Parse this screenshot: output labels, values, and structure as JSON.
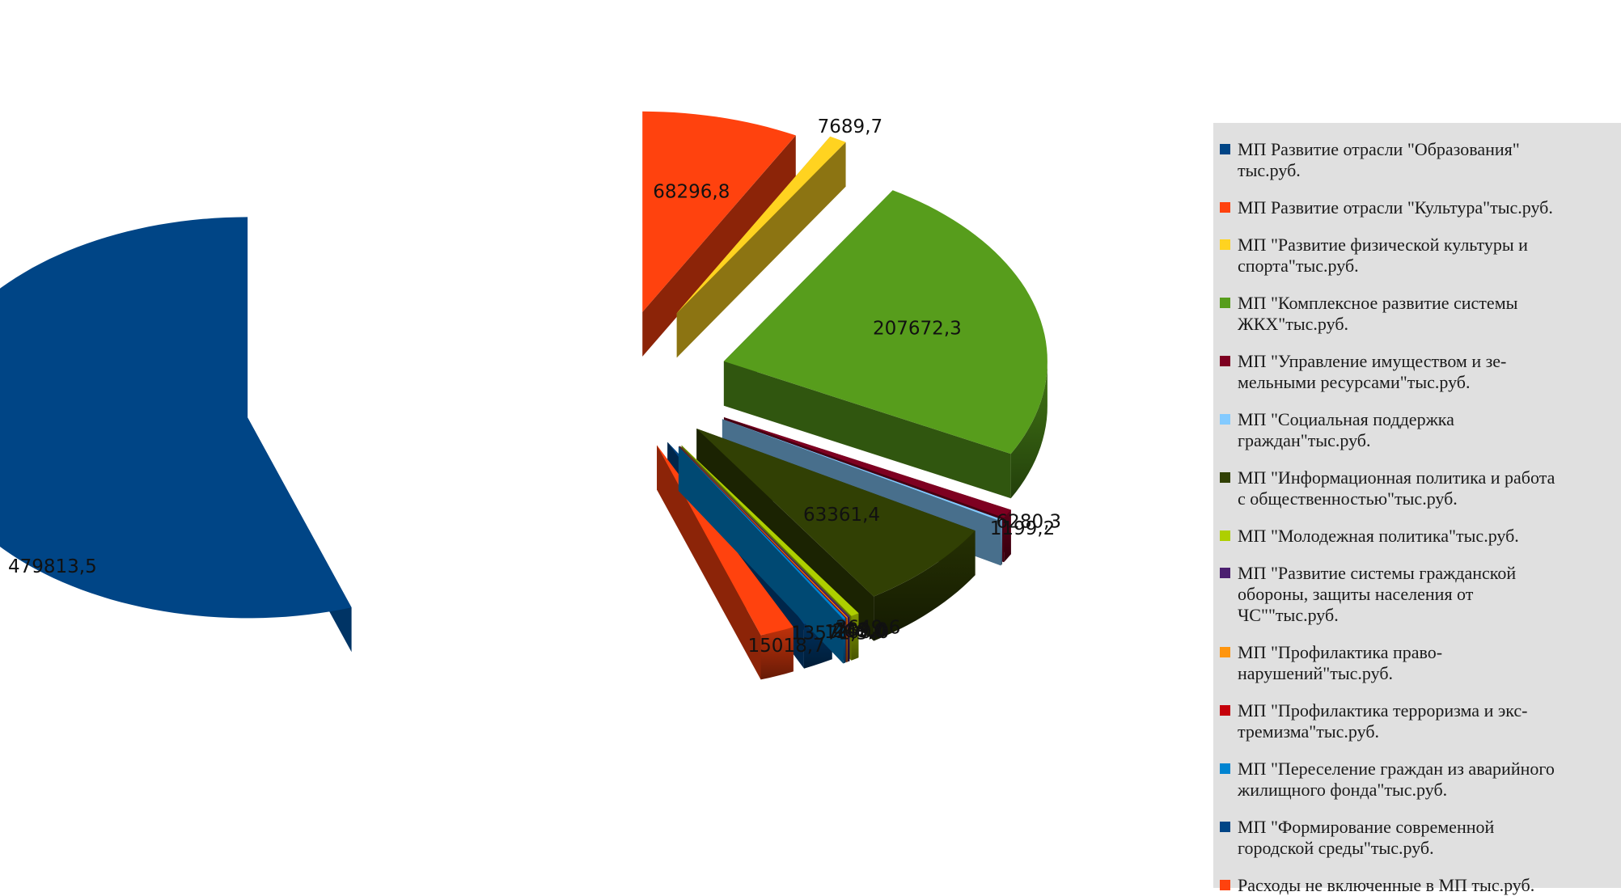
{
  "chart_data": {
    "type": "pie",
    "style": "3d-exploded",
    "unit": "тыс.руб.",
    "legend_position": "right",
    "slices": [
      {
        "label": "МП Развитие отрасли \"Образования\" тыс.руб.",
        "value": 479813.5,
        "display": "479813,5",
        "color": "#004586"
      },
      {
        "label": "МП Развитие отрасли \"Культура\"тыс.руб.",
        "value": 68296.8,
        "display": "68296,8",
        "color": "#ff420e"
      },
      {
        "label": "МП \"Развитие физической культуры и спорта\"тыс.руб.",
        "value": 7689.7,
        "display": "7689,7",
        "color": "#ffd320"
      },
      {
        "label": "МП \"Комплексное развитие системы ЖКХ\"тыс.руб.",
        "value": 207672.3,
        "display": "207672,3",
        "color": "#579d1c"
      },
      {
        "label": "МП \"Управление имуществом и земельными ресурсами\"тыс.руб.",
        "value": 6280.3,
        "display": "6280,3",
        "color": "#7e0021"
      },
      {
        "label": "МП \"Социальная поддержка граждан\"тыс.руб.",
        "value": 1199.2,
        "display": "1199,2",
        "color": "#83caff"
      },
      {
        "label": "МП \"Информационная политика и работа с общественностью\"тыс.руб.",
        "value": 63361.4,
        "display": "63361,4",
        "color": "#314004"
      },
      {
        "label": "МП \"Молодежная политика\"тыс.руб.",
        "value": 3649.6,
        "display": "3649,6",
        "color": "#aecf00"
      },
      {
        "label": "МП \"Развитие системы гражданской обороны, защиты населения от ЧС\"\"тыс.руб.",
        "value": 782.0,
        "display": "782,0",
        "color": "#4b1f6f"
      },
      {
        "label": "МП \"Профилактика правонарушений\"тыс.руб.",
        "value": 445.0,
        "display": "445,0",
        "color": "#ff950e"
      },
      {
        "label": "МП \"Профилактика терроризма и экстремизма\"тыс.руб.",
        "value": 200.0,
        "display": "200,0",
        "color": "#c5000b"
      },
      {
        "label": "МП \"Переселение граждан из аварийного жилищного фонда\"тыс.руб.",
        "value": 1200.0,
        "display": "1200,0",
        "color": "#0084d1"
      },
      {
        "label": "МП \"Формирование современной городской среды\"тыс.руб.",
        "value": 13571.5,
        "display": "13571,5",
        "color": "#004586"
      },
      {
        "label": "Расходы не включенные в МП тыс.руб.",
        "value": 15018.7,
        "display": "15018,7",
        "color": "#ff420e"
      }
    ],
    "legend_lines": [
      [
        "МП Развитие отрасли \"Образования\"",
        "тыс.руб."
      ],
      [
        "МП Развитие отрасли \"Культура\"тыс.руб."
      ],
      [
        "МП \"Развитие физической культуры и",
        "спорта\"тыс.руб."
      ],
      [
        "МП \"Комплексное развитие системы",
        "ЖКХ\"тыс.руб."
      ],
      [
        "МП \"Управление имуществом и зе-",
        "мельными ресурсами\"тыс.руб."
      ],
      [
        "МП \"Социальная поддержка",
        "граждан\"тыс.руб."
      ],
      [
        "МП \"Информационная политика и работа",
        "с общественностью\"тыс.руб."
      ],
      [
        "МП \"Молодежная политика\"тыс.руб."
      ],
      [
        "МП \"Развитие системы гражданской",
        "обороны, защиты населения от",
        "ЧС\"\"тыс.руб."
      ],
      [
        "МП \"Профилактика право-",
        "нарушений\"тыс.руб."
      ],
      [
        "МП \"Профилактика терроризма и экс-",
        "тремизма\"тыс.руб."
      ],
      [
        "МП \"Переселение граждан из аварийного",
        "жилищного фонда\"тыс.руб."
      ],
      [
        "МП \"Формирование современной",
        "городской среды\"тыс.руб."
      ],
      [
        "Расходы не включенные в МП тыс.руб."
      ]
    ]
  }
}
